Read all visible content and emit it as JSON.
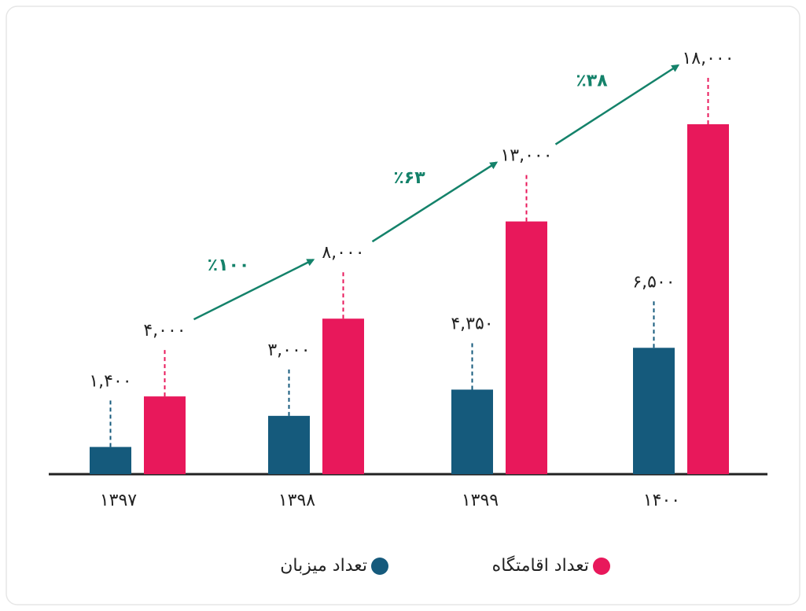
{
  "chart_data": {
    "type": "bar",
    "categories": [
      "۱۳۹۷",
      "۱۳۹۸",
      "۱۳۹۹",
      "۱۴۰۰"
    ],
    "series": [
      {
        "name": "تعداد میزبان",
        "color": "#155a7c",
        "values": [
          1400,
          3000,
          4350,
          6500
        ],
        "value_labels": [
          "۱,۴۰۰",
          "۳,۰۰۰",
          "۴,۳۵۰",
          "۶,۵۰۰"
        ]
      },
      {
        "name": "تعداد اقامتگاه",
        "color": "#e8185b",
        "values": [
          4000,
          8000,
          13000,
          18000
        ],
        "value_labels": [
          "۴,۰۰۰",
          "۸,۰۰۰",
          "۱۳,۰۰۰",
          "۱۸,۰۰۰"
        ]
      }
    ],
    "annotations": [
      "٪۱۰۰",
      "٪۶۳",
      "٪۳۸"
    ],
    "annotation_color": "#14826a"
  }
}
